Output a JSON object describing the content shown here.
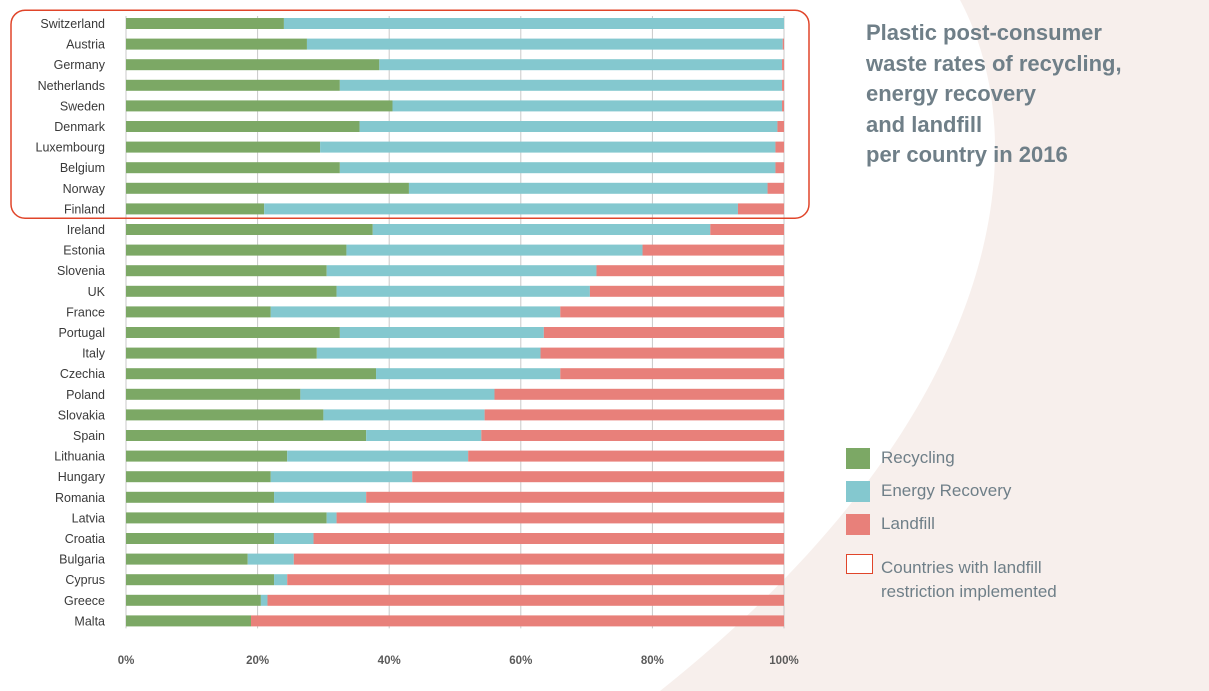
{
  "colors": {
    "recycling": "#7ca865",
    "energy_recovery": "#84c8cf",
    "landfill": "#e8807a",
    "highlight": "#e0452a",
    "title": "#6f7f88",
    "background_shape": "#f7efec"
  },
  "title_lines": [
    "Plastic post-consumer",
    "waste rates of recycling,",
    "energy recovery",
    "and landfill",
    "per country in 2016"
  ],
  "legend": {
    "items": [
      {
        "label": "Recycling",
        "color": "#7ca865"
      },
      {
        "label": "Energy Recovery",
        "color": "#84c8cf"
      },
      {
        "label": "Landfill",
        "color": "#e8807a"
      }
    ],
    "note_lines": [
      "Countries with landfill",
      "restriction implemented"
    ]
  },
  "chart_data": {
    "type": "bar",
    "orientation": "horizontal",
    "stacked": true,
    "xlim": [
      0,
      100
    ],
    "x_ticks": [
      "0%",
      "20%",
      "40%",
      "60%",
      "80%",
      "100%"
    ],
    "grid": true,
    "legend_position": "right",
    "highlighted_categories": [
      "Switzerland",
      "Austria",
      "Germany",
      "Netherlands",
      "Sweden",
      "Denmark",
      "Luxembourg",
      "Belgium",
      "Norway",
      "Finland"
    ],
    "categories": [
      "Switzerland",
      "Austria",
      "Germany",
      "Netherlands",
      "Sweden",
      "Denmark",
      "Luxembourg",
      "Belgium",
      "Norway",
      "Finland",
      "Ireland",
      "Estonia",
      "Slovenia",
      "UK",
      "France",
      "Portugal",
      "Italy",
      "Czechia",
      "Poland",
      "Slovakia",
      "Spain",
      "Lithuania",
      "Hungary",
      "Romania",
      "Latvia",
      "Croatia",
      "Bulgaria",
      "Cyprus",
      "Greece",
      "Malta"
    ],
    "series": [
      {
        "name": "Recycling",
        "values": [
          24,
          27.5,
          38.5,
          32.5,
          40.5,
          35.5,
          29.5,
          32.5,
          43,
          21,
          37.5,
          33.5,
          30.5,
          32,
          22,
          32.5,
          29,
          38,
          26.5,
          30,
          36.5,
          24.5,
          22,
          22.5,
          30.5,
          22.5,
          18.5,
          22.5,
          20.5,
          19
        ]
      },
      {
        "name": "Energy Recovery",
        "values": [
          76,
          72.3,
          61.2,
          67.2,
          59.2,
          63.5,
          69.2,
          66.2,
          54.5,
          72,
          51.3,
          45,
          41,
          38.5,
          44,
          31,
          34,
          28,
          29.5,
          24.5,
          17.5,
          27.5,
          21.5,
          14,
          1.5,
          6,
          7,
          2,
          1,
          0
        ]
      },
      {
        "name": "Landfill",
        "values": [
          0,
          0.2,
          0.3,
          0.3,
          0.3,
          1,
          1.3,
          1.3,
          2.5,
          7,
          11.2,
          21.5,
          28.5,
          29.5,
          34,
          36.5,
          37,
          34,
          44,
          45.5,
          46,
          48,
          56.5,
          63.5,
          68,
          71.5,
          74.5,
          75.5,
          78.5,
          81
        ]
      }
    ]
  }
}
